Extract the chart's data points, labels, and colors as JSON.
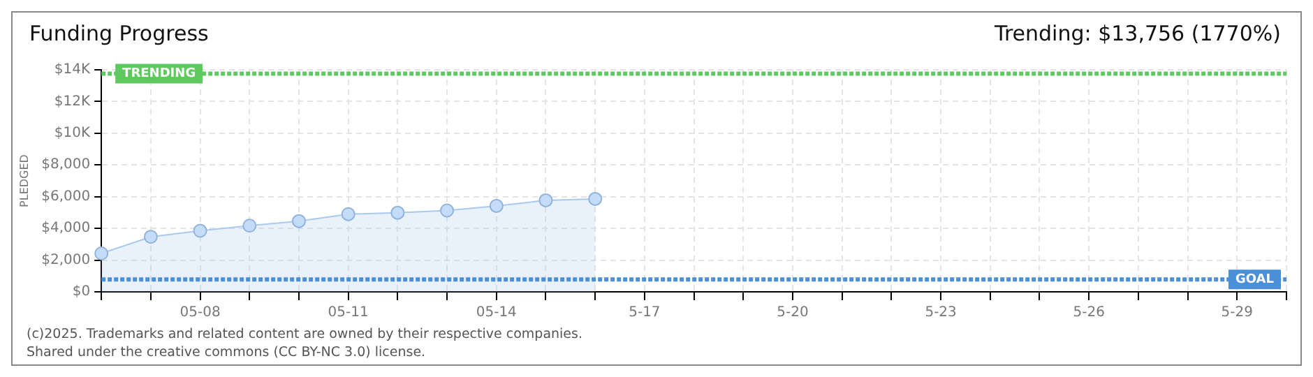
{
  "chart_data": {
    "type": "area",
    "title": "Funding Progress",
    "annotations": [
      "Trending: $13,756 (1770%)",
      "(c)2025. Trademarks and related content are owned by their respective companies.",
      "Shared under the creative commons (CC BY-NC 3.0) license."
    ],
    "ylabel": "PLEDGED",
    "categories": [
      null,
      null,
      "05-08",
      null,
      null,
      "05-11",
      null,
      null,
      "05-14",
      null,
      null,
      "5-17",
      null,
      null,
      "5-20",
      null,
      null,
      "5-23",
      null,
      null,
      "5-26",
      null,
      null,
      "5-29",
      null
    ],
    "series": [
      {
        "color": "#a9c9ef",
        "values": [
          2420,
          3470,
          3850,
          4170,
          4460,
          4900,
          4990,
          5130,
          5420,
          5770,
          5860,
          null,
          null,
          null,
          null,
          null,
          null,
          null,
          null,
          null,
          null,
          null,
          null,
          null,
          null
        ]
      }
    ],
    "ylim": [
      0,
      14000
    ],
    "yticks": [
      {
        "value": 0,
        "label": "$0"
      },
      {
        "value": 2000,
        "label": "$2,000"
      },
      {
        "value": 4000,
        "label": "$4,000"
      },
      {
        "value": 6000,
        "label": "$6,000"
      },
      {
        "value": 8000,
        "label": "$8,000"
      },
      {
        "value": 10000,
        "label": "$10K"
      },
      {
        "value": 12000,
        "label": "$12K"
      },
      {
        "value": 14000,
        "label": "$14K"
      }
    ],
    "ref_lines": [
      {
        "axis": "y",
        "value": 13756,
        "label": "TRENDING",
        "color": "#5ec95e",
        "line_style": "dashed"
      },
      {
        "axis": "y",
        "value": 777,
        "label": "GOAL",
        "color": "#4a90d9",
        "line_style": "dashed"
      }
    ],
    "grid": true,
    "legend": false,
    "marker": "circle"
  }
}
